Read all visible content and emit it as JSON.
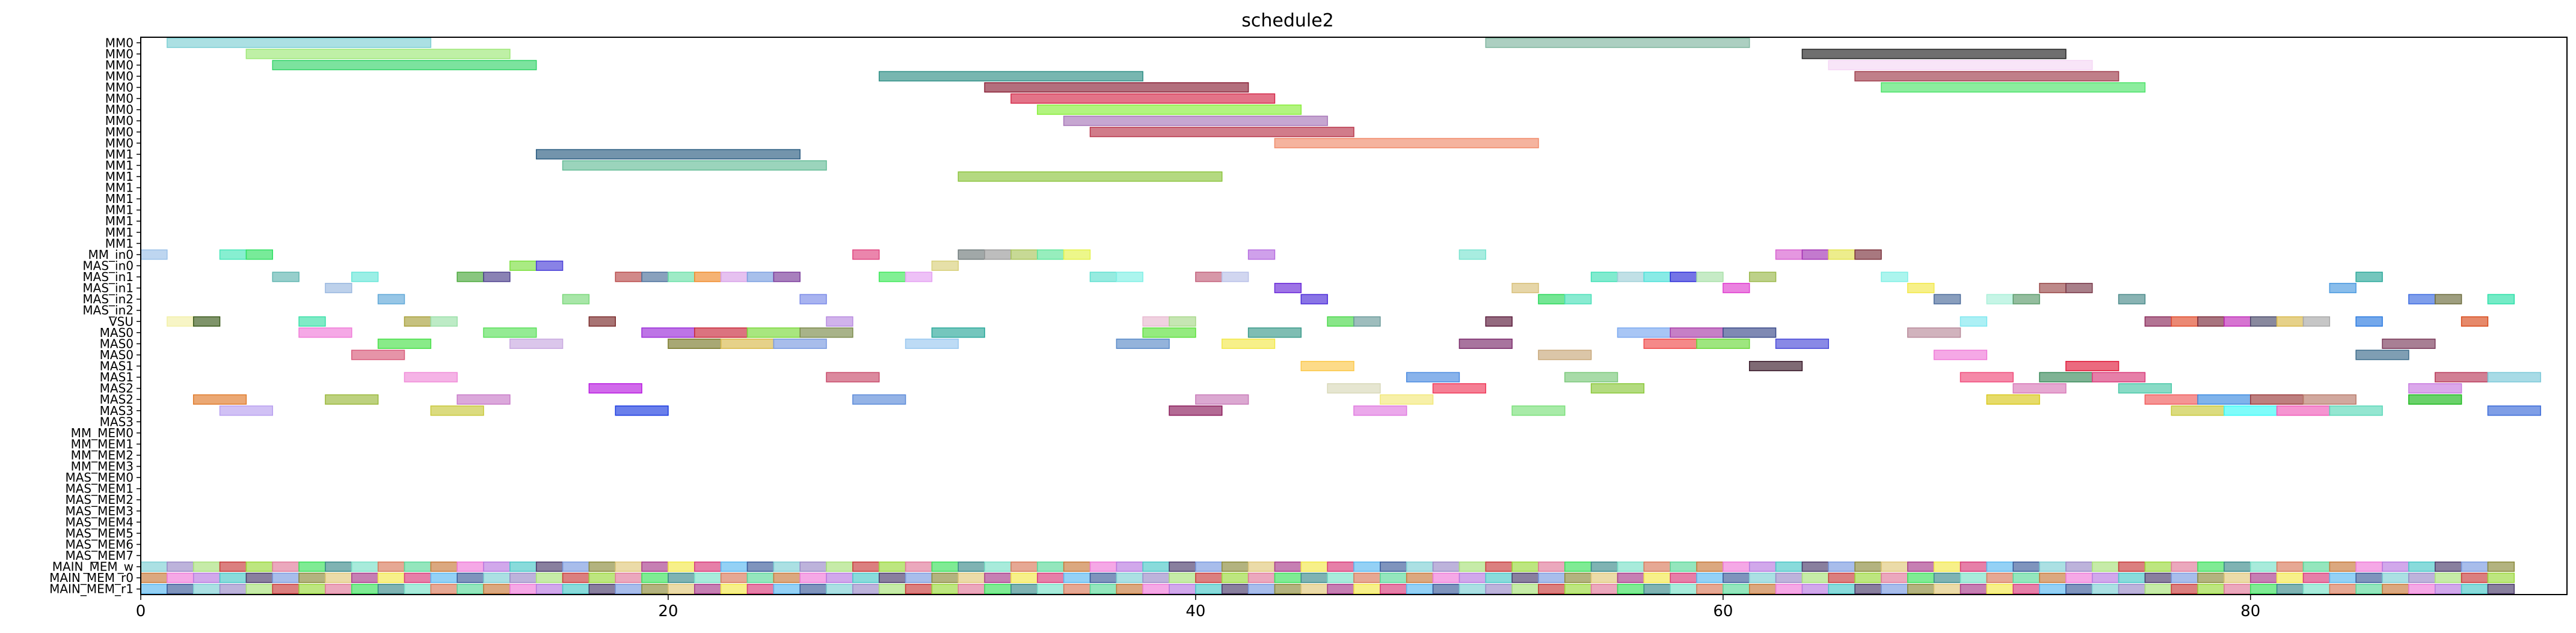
{
  "chart_data": {
    "type": "gantt",
    "title": "schedule2",
    "xlabel": "",
    "ylabel": "",
    "xlim": [
      0,
      92
    ],
    "x_ticks": [
      "0",
      "20",
      "40",
      "60",
      "80"
    ],
    "x_tick_values": [
      0,
      20,
      40,
      60,
      80
    ],
    "rows": [
      "MM0",
      "MM0",
      "MM0",
      "MM0",
      "MM0",
      "MM0",
      "MM0",
      "MM0",
      "MM0",
      "MM0",
      "MM1",
      "MM1",
      "MM1",
      "MM1",
      "MM1",
      "MM1",
      "MM1",
      "MM1",
      "MM1",
      "MM_in0",
      "MAS_in0",
      "MAS_in1",
      "MAS_in1",
      "MAS_in2",
      "MAS_in2",
      "VSU",
      "MAS0",
      "MAS0",
      "MAS0",
      "MAS1",
      "MAS1",
      "MAS2",
      "MAS2",
      "MAS3",
      "MAS3",
      "MM_MEM0",
      "MM_MEM1",
      "MM_MEM2",
      "MM_MEM3",
      "MAS_MEM0",
      "MAS_MEM1",
      "MAS_MEM2",
      "MAS_MEM3",
      "MAS_MEM4",
      "MAS_MEM5",
      "MAS_MEM6",
      "MAS_MEM7",
      "MAIN_MEM_w",
      "MAIN_MEM_r0",
      "MAIN_MEM_r1"
    ],
    "tasks": [
      {
        "row": 0,
        "start": 1,
        "end": 11,
        "color": "#7ecfd4"
      },
      {
        "row": 0,
        "start": 51,
        "end": 61,
        "color": "#7fb59f"
      },
      {
        "row": 1,
        "start": 4,
        "end": 14,
        "color": "#9de876"
      },
      {
        "row": 1,
        "start": 63,
        "end": 73,
        "color": "#222222"
      },
      {
        "row": 2,
        "start": 5,
        "end": 15,
        "color": "#35d46a"
      },
      {
        "row": 2,
        "start": 64,
        "end": 74,
        "color": "#f5d7f5"
      },
      {
        "row": 3,
        "start": 28,
        "end": 38,
        "color": "#2f8f86"
      },
      {
        "row": 3,
        "start": 65,
        "end": 75,
        "color": "#9e3b4a"
      },
      {
        "row": 4,
        "start": 32,
        "end": 42,
        "color": "#8a2238"
      },
      {
        "row": 4,
        "start": 66,
        "end": 76,
        "color": "#4ee36a"
      },
      {
        "row": 5,
        "start": 33,
        "end": 43,
        "color": "#d42848"
      },
      {
        "row": 6,
        "start": 34,
        "end": 44,
        "color": "#89ee3a"
      },
      {
        "row": 7,
        "start": 35,
        "end": 45,
        "color": "#a877b8"
      },
      {
        "row": 8,
        "start": 36,
        "end": 46,
        "color": "#b8364b"
      },
      {
        "row": 9,
        "start": 43,
        "end": 53,
        "color": "#f08b6a"
      },
      {
        "row": 10,
        "start": 15,
        "end": 25,
        "color": "#285a80"
      },
      {
        "row": 11,
        "start": 16,
        "end": 26,
        "color": "#66bd98"
      },
      {
        "row": 12,
        "start": 31,
        "end": 41,
        "color": "#8cc43d"
      },
      {
        "row": 19,
        "start": 0,
        "end": 1,
        "color": "#9bc0e8"
      },
      {
        "row": 19,
        "start": 3,
        "end": 4,
        "color": "#46e6b9"
      },
      {
        "row": 19,
        "start": 4,
        "end": 5,
        "color": "#2fe063"
      },
      {
        "row": 19,
        "start": 27,
        "end": 28,
        "color": "#e0437f"
      },
      {
        "row": 19,
        "start": 31,
        "end": 32,
        "color": "#6f7a7a"
      },
      {
        "row": 19,
        "start": 32,
        "end": 33,
        "color": "#9a9a9a"
      },
      {
        "row": 19,
        "start": 33,
        "end": 34,
        "color": "#a9c45c"
      },
      {
        "row": 19,
        "start": 34,
        "end": 35,
        "color": "#5fe59a"
      },
      {
        "row": 19,
        "start": 35,
        "end": 36,
        "color": "#e4f24b"
      },
      {
        "row": 19,
        "start": 42,
        "end": 43,
        "color": "#b66de0"
      },
      {
        "row": 19,
        "start": 50,
        "end": 51,
        "color": "#79e3cf"
      },
      {
        "row": 19,
        "start": 62,
        "end": 63,
        "color": "#d75fd0"
      },
      {
        "row": 19,
        "start": 63,
        "end": 64,
        "color": "#a332b3"
      },
      {
        "row": 19,
        "start": 64,
        "end": 65,
        "color": "#e3e34f"
      },
      {
        "row": 19,
        "start": 65,
        "end": 66,
        "color": "#7a2f3a"
      },
      {
        "row": 20,
        "start": 14,
        "end": 15,
        "color": "#7de040"
      },
      {
        "row": 20,
        "start": 15,
        "end": 16,
        "color": "#4a3fd8"
      },
      {
        "row": 20,
        "start": 30,
        "end": 31,
        "color": "#d8d07a"
      },
      {
        "row": 21,
        "start": 5,
        "end": 6,
        "color": "#5fb5b0"
      },
      {
        "row": 21,
        "start": 8,
        "end": 9,
        "color": "#66e6d8"
      },
      {
        "row": 21,
        "start": 12,
        "end": 13,
        "color": "#4aa83a"
      },
      {
        "row": 21,
        "start": 13,
        "end": 14,
        "color": "#4c3f8c"
      },
      {
        "row": 21,
        "start": 18,
        "end": 19,
        "color": "#b84a4a"
      },
      {
        "row": 21,
        "start": 19,
        "end": 20,
        "color": "#4a6f9a"
      },
      {
        "row": 21,
        "start": 20,
        "end": 21,
        "color": "#6ae0a8"
      },
      {
        "row": 21,
        "start": 21,
        "end": 22,
        "color": "#ef8a2a"
      },
      {
        "row": 21,
        "start": 22,
        "end": 23,
        "color": "#d8a0e8"
      },
      {
        "row": 21,
        "start": 23,
        "end": 24,
        "color": "#7a9ee0"
      },
      {
        "row": 21,
        "start": 24,
        "end": 25,
        "color": "#7a3a9a"
      },
      {
        "row": 21,
        "start": 28,
        "end": 29,
        "color": "#3ee85a"
      },
      {
        "row": 21,
        "start": 29,
        "end": 30,
        "color": "#e5a0f2"
      },
      {
        "row": 21,
        "start": 36,
        "end": 37,
        "color": "#5fe0d0"
      },
      {
        "row": 21,
        "start": 37,
        "end": 38,
        "color": "#7fefe5"
      },
      {
        "row": 21,
        "start": 40,
        "end": 41,
        "color": "#c25f7a"
      },
      {
        "row": 21,
        "start": 41,
        "end": 42,
        "color": "#b8c0e8"
      },
      {
        "row": 21,
        "start": 55,
        "end": 56,
        "color": "#3ee0b5"
      },
      {
        "row": 21,
        "start": 56,
        "end": 57,
        "color": "#9fd0d8"
      },
      {
        "row": 21,
        "start": 57,
        "end": 58,
        "color": "#4ae0d8"
      },
      {
        "row": 21,
        "start": 58,
        "end": 59,
        "color": "#2a2ad8"
      },
      {
        "row": 21,
        "start": 59,
        "end": 60,
        "color": "#a8e0a8"
      },
      {
        "row": 21,
        "start": 61,
        "end": 62,
        "color": "#9ab84a"
      },
      {
        "row": 21,
        "start": 66,
        "end": 67,
        "color": "#7fefe5"
      },
      {
        "row": 21,
        "start": 84,
        "end": 85,
        "color": "#2aa89a"
      },
      {
        "row": 22,
        "start": 7,
        "end": 8,
        "color": "#9ab8e0"
      },
      {
        "row": 22,
        "start": 43,
        "end": 44,
        "color": "#6a2ad8"
      },
      {
        "row": 22,
        "start": 52,
        "end": 53,
        "color": "#d8c07a"
      },
      {
        "row": 22,
        "start": 60,
        "end": 61,
        "color": "#e03fd0"
      },
      {
        "row": 22,
        "start": 67,
        "end": 68,
        "color": "#f2e84a"
      },
      {
        "row": 22,
        "start": 72,
        "end": 73,
        "color": "#9a4a4a"
      },
      {
        "row": 22,
        "start": 73,
        "end": 74,
        "color": "#7a3a4a"
      },
      {
        "row": 22,
        "start": 83,
        "end": 84,
        "color": "#4a9ae0"
      },
      {
        "row": 23,
        "start": 9,
        "end": 10,
        "color": "#5fa8d8"
      },
      {
        "row": 23,
        "start": 16,
        "end": 17,
        "color": "#7ad87a"
      },
      {
        "row": 23,
        "start": 25,
        "end": 26,
        "color": "#7a8ae8"
      },
      {
        "row": 23,
        "start": 44,
        "end": 45,
        "color": "#4a2ad8"
      },
      {
        "row": 23,
        "start": 53,
        "end": 54,
        "color": "#2ad85a"
      },
      {
        "row": 23,
        "start": 54,
        "end": 55,
        "color": "#4ae0b8"
      },
      {
        "row": 23,
        "start": 68,
        "end": 69,
        "color": "#4a6a9a"
      },
      {
        "row": 23,
        "start": 70,
        "end": 71,
        "color": "#a8f0d8"
      },
      {
        "row": 23,
        "start": 71,
        "end": 72,
        "color": "#5a9a6a"
      },
      {
        "row": 23,
        "start": 75,
        "end": 76,
        "color": "#4a8a8a"
      },
      {
        "row": 23,
        "start": 86,
        "end": 87,
        "color": "#3a6ae0"
      },
      {
        "row": 23,
        "start": 87,
        "end": 88,
        "color": "#6a6a3a"
      },
      {
        "row": 23,
        "start": 89,
        "end": 90,
        "color": "#2ae0a8"
      },
      {
        "row": 25,
        "start": 1,
        "end": 2,
        "color": "#f2f0a8"
      },
      {
        "row": 25,
        "start": 2,
        "end": 3,
        "color": "#3a5a1a"
      },
      {
        "row": 25,
        "start": 6,
        "end": 7,
        "color": "#3ae0a8"
      },
      {
        "row": 25,
        "start": 10,
        "end": 11,
        "color": "#a8a03a"
      },
      {
        "row": 25,
        "start": 11,
        "end": 12,
        "color": "#9ae0a8"
      },
      {
        "row": 25,
        "start": 17,
        "end": 18,
        "color": "#7a2a2a"
      },
      {
        "row": 25,
        "start": 26,
        "end": 27,
        "color": "#b88ae0"
      },
      {
        "row": 25,
        "start": 38,
        "end": 39,
        "color": "#e8b8d0"
      },
      {
        "row": 25,
        "start": 39,
        "end": 40,
        "color": "#a8d88a"
      },
      {
        "row": 25,
        "start": 45,
        "end": 46,
        "color": "#4ad84a"
      },
      {
        "row": 25,
        "start": 46,
        "end": 47,
        "color": "#6a9a9a"
      },
      {
        "row": 25,
        "start": 51,
        "end": 52,
        "color": "#5a1a3a"
      },
      {
        "row": 25,
        "start": 69,
        "end": 70,
        "color": "#7fe8f0"
      },
      {
        "row": 25,
        "start": 76,
        "end": 77,
        "color": "#8a2a5a"
      },
      {
        "row": 25,
        "start": 77,
        "end": 78,
        "color": "#e04a2a"
      },
      {
        "row": 25,
        "start": 78,
        "end": 79,
        "color": "#7a2a3a"
      },
      {
        "row": 25,
        "start": 79,
        "end": 80,
        "color": "#c02ab8"
      },
      {
        "row": 25,
        "start": 80,
        "end": 81,
        "color": "#4a4a6a"
      },
      {
        "row": 25,
        "start": 81,
        "end": 82,
        "color": "#d8b84a"
      },
      {
        "row": 25,
        "start": 82,
        "end": 83,
        "color": "#a8a8a8"
      },
      {
        "row": 25,
        "start": 84,
        "end": 85,
        "color": "#2a7ae0"
      },
      {
        "row": 25,
        "start": 88,
        "end": 89,
        "color": "#d84a1a"
      },
      {
        "row": 26,
        "start": 6,
        "end": 8,
        "color": "#f07ad8"
      },
      {
        "row": 26,
        "start": 13,
        "end": 15,
        "color": "#5ae05a"
      },
      {
        "row": 26,
        "start": 19,
        "end": 21,
        "color": "#9a2ad8"
      },
      {
        "row": 26,
        "start": 21,
        "end": 23,
        "color": "#c8283a"
      },
      {
        "row": 26,
        "start": 23,
        "end": 25,
        "color": "#7ad83a"
      },
      {
        "row": 26,
        "start": 25,
        "end": 27,
        "color": "#7a8a4a"
      },
      {
        "row": 26,
        "start": 30,
        "end": 32,
        "color": "#2aa89a"
      },
      {
        "row": 26,
        "start": 38,
        "end": 40,
        "color": "#5ae03a"
      },
      {
        "row": 26,
        "start": 42,
        "end": 44,
        "color": "#3a9a8a"
      },
      {
        "row": 26,
        "start": 56,
        "end": 58,
        "color": "#7aa8f0"
      },
      {
        "row": 26,
        "start": 58,
        "end": 60,
        "color": "#a83aa8"
      },
      {
        "row": 26,
        "start": 60,
        "end": 62,
        "color": "#3a4a8a"
      },
      {
        "row": 26,
        "start": 67,
        "end": 69,
        "color": "#b88a9a"
      },
      {
        "row": 27,
        "start": 9,
        "end": 11,
        "color": "#4ae04a"
      },
      {
        "row": 27,
        "start": 14,
        "end": 16,
        "color": "#c8a8e0"
      },
      {
        "row": 27,
        "start": 20,
        "end": 22,
        "color": "#7a7a2a"
      },
      {
        "row": 27,
        "start": 22,
        "end": 24,
        "color": "#d8b84a"
      },
      {
        "row": 27,
        "start": 24,
        "end": 26,
        "color": "#7a9ae0"
      },
      {
        "row": 27,
        "start": 29,
        "end": 31,
        "color": "#9ac8f0"
      },
      {
        "row": 27,
        "start": 37,
        "end": 39,
        "color": "#5a8ac8"
      },
      {
        "row": 27,
        "start": 41,
        "end": 43,
        "color": "#f2e84a"
      },
      {
        "row": 27,
        "start": 50,
        "end": 52,
        "color": "#7a2a6a"
      },
      {
        "row": 27,
        "start": 57,
        "end": 59,
        "color": "#f04a4a"
      },
      {
        "row": 27,
        "start": 59,
        "end": 61,
        "color": "#6ad83a"
      },
      {
        "row": 27,
        "start": 62,
        "end": 64,
        "color": "#4a4ad8"
      },
      {
        "row": 27,
        "start": 85,
        "end": 87,
        "color": "#7a3a5a"
      },
      {
        "row": 28,
        "start": 8,
        "end": 10,
        "color": "#d85a7a"
      },
      {
        "row": 28,
        "start": 53,
        "end": 55,
        "color": "#c8a87a"
      },
      {
        "row": 28,
        "start": 68,
        "end": 70,
        "color": "#f07ad8"
      },
      {
        "row": 28,
        "start": 84,
        "end": 86,
        "color": "#3a6a8a"
      },
      {
        "row": 29,
        "start": 44,
        "end": 46,
        "color": "#fcc84a"
      },
      {
        "row": 29,
        "start": 61,
        "end": 63,
        "color": "#3a1a2a"
      },
      {
        "row": 29,
        "start": 73,
        "end": 75,
        "color": "#e01a3a"
      },
      {
        "row": 30,
        "start": 10,
        "end": 12,
        "color": "#f08ad8"
      },
      {
        "row": 30,
        "start": 26,
        "end": 28,
        "color": "#c84a6a"
      },
      {
        "row": 30,
        "start": 48,
        "end": 50,
        "color": "#4a8ae0"
      },
      {
        "row": 30,
        "start": 54,
        "end": 56,
        "color": "#7ac87a"
      },
      {
        "row": 30,
        "start": 69,
        "end": 71,
        "color": "#f04a7a"
      },
      {
        "row": 30,
        "start": 72,
        "end": 74,
        "color": "#3a8a5a"
      },
      {
        "row": 30,
        "start": 74,
        "end": 76,
        "color": "#d83a7a"
      },
      {
        "row": 30,
        "start": 87,
        "end": 89,
        "color": "#b83a5a"
      },
      {
        "row": 30,
        "start": 89,
        "end": 91,
        "color": "#7ac8d8"
      },
      {
        "row": 31,
        "start": 17,
        "end": 19,
        "color": "#b81ae0"
      },
      {
        "row": 31,
        "start": 45,
        "end": 47,
        "color": "#d8d8b8"
      },
      {
        "row": 31,
        "start": 49,
        "end": 51,
        "color": "#f03a5a"
      },
      {
        "row": 31,
        "start": 55,
        "end": 57,
        "color": "#8ac83a"
      },
      {
        "row": 31,
        "start": 71,
        "end": 73,
        "color": "#d87ab8"
      },
      {
        "row": 31,
        "start": 75,
        "end": 77,
        "color": "#4ac8a8"
      },
      {
        "row": 31,
        "start": 86,
        "end": 88,
        "color": "#c87ae0"
      },
      {
        "row": 32,
        "start": 2,
        "end": 4,
        "color": "#e07a2a"
      },
      {
        "row": 32,
        "start": 7,
        "end": 9,
        "color": "#9ab83a"
      },
      {
        "row": 32,
        "start": 12,
        "end": 14,
        "color": "#c87ac8"
      },
      {
        "row": 32,
        "start": 27,
        "end": 29,
        "color": "#5a8ad8"
      },
      {
        "row": 32,
        "start": 40,
        "end": 42,
        "color": "#c87ab8"
      },
      {
        "row": 32,
        "start": 47,
        "end": 49,
        "color": "#f2e87a"
      },
      {
        "row": 32,
        "start": 70,
        "end": 72,
        "color": "#d8c81a"
      },
      {
        "row": 32,
        "start": 76,
        "end": 78,
        "color": "#f05a5a"
      },
      {
        "row": 32,
        "start": 78,
        "end": 80,
        "color": "#3a8ae0"
      },
      {
        "row": 32,
        "start": 80,
        "end": 82,
        "color": "#9a3a3a"
      },
      {
        "row": 32,
        "start": 82,
        "end": 84,
        "color": "#b87a6a"
      },
      {
        "row": 32,
        "start": 86,
        "end": 88,
        "color": "#1ab81a"
      },
      {
        "row": 33,
        "start": 3,
        "end": 5,
        "color": "#b8a0f0"
      },
      {
        "row": 33,
        "start": 11,
        "end": 13,
        "color": "#c8c83a"
      },
      {
        "row": 33,
        "start": 18,
        "end": 20,
        "color": "#1a3ae0"
      },
      {
        "row": 33,
        "start": 39,
        "end": 41,
        "color": "#8a1a5a"
      },
      {
        "row": 33,
        "start": 46,
        "end": 48,
        "color": "#e07ae0"
      },
      {
        "row": 33,
        "start": 52,
        "end": 54,
        "color": "#7ae07a"
      },
      {
        "row": 33,
        "start": 77,
        "end": 79,
        "color": "#c8c83a"
      },
      {
        "row": 33,
        "start": 79,
        "end": 81,
        "color": "#3afaf8"
      },
      {
        "row": 33,
        "start": 81,
        "end": 83,
        "color": "#f05ab8"
      },
      {
        "row": 33,
        "start": 83,
        "end": 85,
        "color": "#5ad8b8"
      },
      {
        "row": 33,
        "start": 89,
        "end": 91,
        "color": "#3a6ad8"
      }
    ],
    "mem_rows": {
      "row_indices": [
        47,
        48,
        49
      ],
      "start": 0,
      "end": 90,
      "palette": [
        "#7ecfd4",
        "#e07a9a",
        "#5ad89a",
        "#4a3a6a",
        "#f2e84a",
        "#9a8ac8",
        "#3ae05a",
        "#c87a3a",
        "#7a9ae0",
        "#d83a7a",
        "#a8e07a",
        "#3a8a8a",
        "#f07ad8",
        "#8a8a3a",
        "#5ab8f0",
        "#c83a3a",
        "#7ae0c8",
        "#b87ae0",
        "#e0c87a",
        "#3a5a9a",
        "#9ad83a",
        "#d87a5a",
        "#4ac8c8",
        "#a83a8a"
      ]
    }
  }
}
